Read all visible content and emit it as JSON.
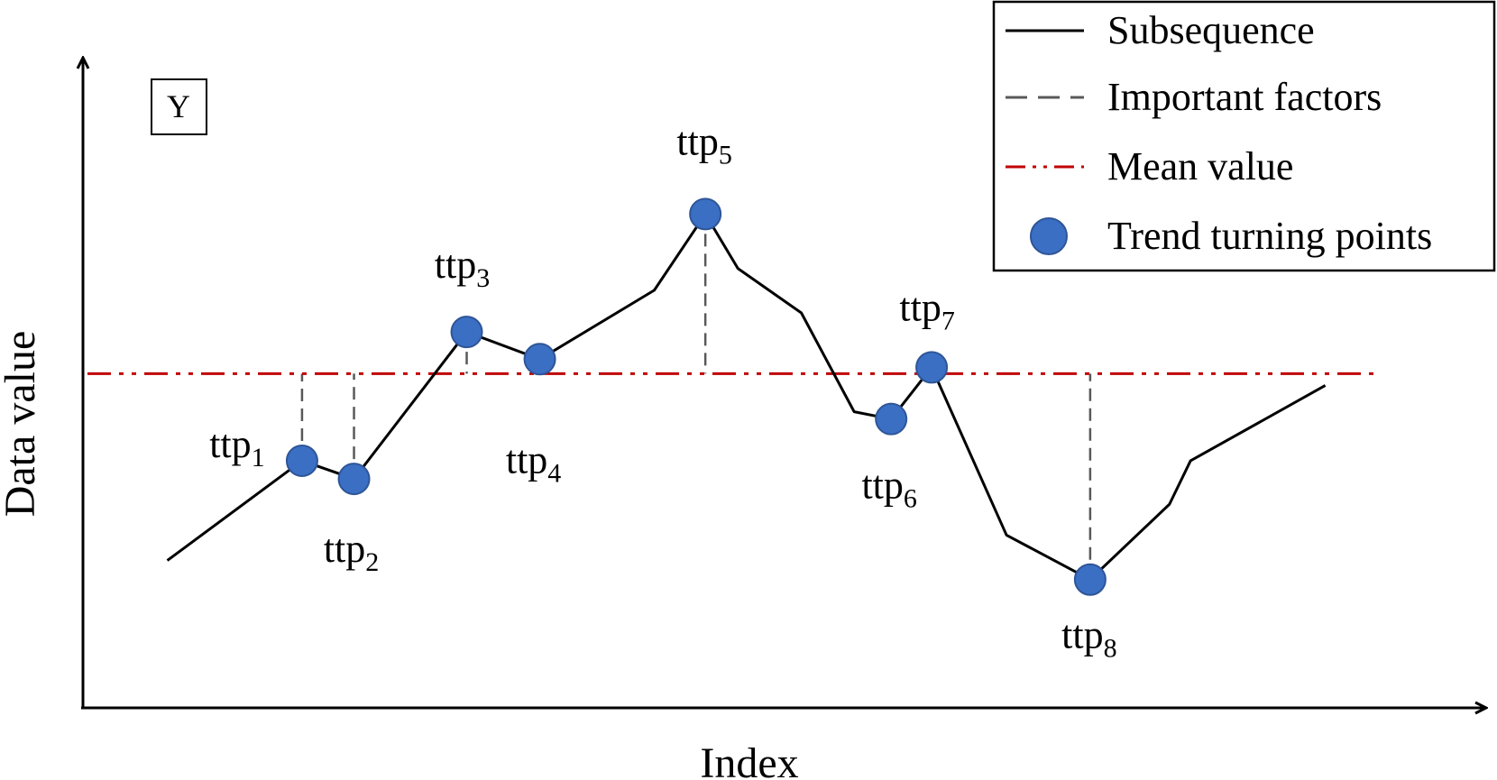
{
  "chart_data": {
    "type": "line",
    "xlabel": "Index",
    "ylabel": "Data value",
    "box_label": "Y",
    "mean": 448,
    "x_range": [
      0,
      1700
    ],
    "y_range": [
      0,
      860
    ],
    "subsequence": {
      "x": [
        190,
        343,
        402,
        530,
        613,
        743,
        801,
        838,
        910,
        970,
        1012,
        1058,
        1143,
        1238,
        1328,
        1352,
        1505
      ],
      "y": [
        242,
        352,
        332,
        494,
        464,
        540,
        624,
        564,
        515,
        406,
        398,
        455,
        270,
        221,
        304,
        352,
        435
      ]
    },
    "turning_points": [
      {
        "name": "ttp",
        "sub": "1",
        "x": 343,
        "y": 352
      },
      {
        "name": "ttp",
        "sub": "2",
        "x": 402,
        "y": 332
      },
      {
        "name": "ttp",
        "sub": "3",
        "x": 530,
        "y": 494
      },
      {
        "name": "ttp",
        "sub": "4",
        "x": 613,
        "y": 464
      },
      {
        "name": "ttp",
        "sub": "5",
        "x": 801,
        "y": 624
      },
      {
        "name": "ttp",
        "sub": "6",
        "x": 1012,
        "y": 398
      },
      {
        "name": "ttp",
        "sub": "7",
        "x": 1058,
        "y": 455
      },
      {
        "name": "ttp",
        "sub": "8",
        "x": 1238,
        "y": 221
      }
    ],
    "legend": {
      "placement": "top-right",
      "items": [
        {
          "label": "Subsequence",
          "style": "solid"
        },
        {
          "label": "Important factors",
          "style": "dashed"
        },
        {
          "label": "Mean value",
          "style": "dash-dot"
        },
        {
          "label": "Trend turning points",
          "style": "marker"
        }
      ]
    },
    "colors": {
      "line": "#000000",
      "factors": "#595959",
      "mean": "#c00000",
      "marker_fill": "#3a6fc4",
      "marker_stroke": "#2f5597"
    }
  }
}
